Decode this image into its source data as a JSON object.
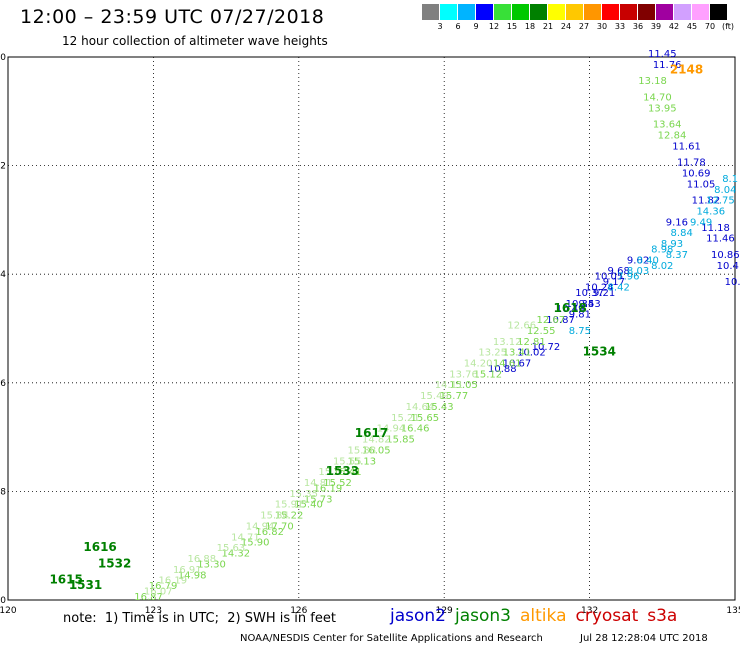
{
  "title": "12:00 – 23:59 UTC 07/27/2018",
  "subtitle": "12 hour collection of altimeter wave heights",
  "scale": {
    "colors": [
      "#808080",
      "#00ffff",
      "#00b4ff",
      "#0000ff",
      "#38e038",
      "#00c800",
      "#008000",
      "#ffff00",
      "#ffc800",
      "#ff9600",
      "#ff0000",
      "#c80000",
      "#800000",
      "#a000a0",
      "#d2a0ff",
      "#ffa0ff",
      "#000000"
    ],
    "labels": [
      "3",
      "6",
      "9",
      "12",
      "15",
      "18",
      "21",
      "24",
      "27",
      "30",
      "33",
      "36",
      "39",
      "42",
      "45",
      "70",
      "(ft)"
    ]
  },
  "axes": {
    "x_labels": [
      "120",
      "123",
      "126",
      "129",
      "132",
      "135"
    ],
    "y_labels": [
      "-50",
      "-52",
      "-54",
      "-56",
      "-58",
      "-60"
    ]
  },
  "note": "note:  1) Time is in UTC;  2) SWH is in feet",
  "legend": [
    {
      "name": "jason2",
      "color": "#0000cc"
    },
    {
      "name": "jason3",
      "color": "#008000"
    },
    {
      "name": "altika",
      "color": "#ff9900"
    },
    {
      "name": "cryosat",
      "color": "#cc0000"
    },
    {
      "name": "s3a",
      "color": "#cc0000"
    }
  ],
  "credit": "NOAA/NESDIS Center for Satellite Applications and Research",
  "credit_time": "Jul 28 12:28:04 UTC 2018",
  "chart_data": {
    "type": "scatter",
    "xlim": [
      120,
      135
    ],
    "ylim": [
      -60,
      -50
    ],
    "grid": true,
    "time_labels": [
      {
        "lon": 134.0,
        "lat": -50.3,
        "text": "2148",
        "color": "#ff9900"
      },
      {
        "lon": 131.6,
        "lat": -54.7,
        "text": "1618",
        "color": "#008000"
      },
      {
        "lon": 132.2,
        "lat": -55.5,
        "text": "1534",
        "color": "#008000"
      },
      {
        "lon": 127.5,
        "lat": -57.0,
        "text": "1617",
        "color": "#008000"
      },
      {
        "lon": 126.9,
        "lat": -57.7,
        "text": "1533",
        "color": "#008000"
      },
      {
        "lon": 121.9,
        "lat": -59.1,
        "text": "1616",
        "color": "#008000"
      },
      {
        "lon": 122.2,
        "lat": -59.4,
        "text": "1532",
        "color": "#008000"
      },
      {
        "lon": 121.2,
        "lat": -59.7,
        "text": "1615",
        "color": "#008000"
      },
      {
        "lon": 121.6,
        "lat": -59.8,
        "text": "1531",
        "color": "#008000"
      }
    ],
    "tracks": [
      {
        "satellite": "jason2",
        "color": "#0000cc",
        "points": [
          {
            "lon": 133.5,
            "lat": -50.0,
            "v": "11.45"
          },
          {
            "lon": 133.6,
            "lat": -50.2,
            "v": "11.76"
          },
          {
            "lon": 134.0,
            "lat": -51.7,
            "v": "11.61"
          },
          {
            "lon": 134.1,
            "lat": -52.0,
            "v": "11.78"
          },
          {
            "lon": 134.2,
            "lat": -52.2,
            "v": "10.69"
          },
          {
            "lon": 134.3,
            "lat": -52.4,
            "v": "11.05"
          },
          {
            "lon": 134.4,
            "lat": -52.7,
            "v": "11.82"
          },
          {
            "lon": 134.6,
            "lat": -53.2,
            "v": "11.18"
          },
          {
            "lon": 134.7,
            "lat": -53.4,
            "v": "11.46"
          },
          {
            "lon": 134.8,
            "lat": -53.7,
            "v": "10.86"
          },
          {
            "lon": 134.85,
            "lat": -53.9,
            "v": "10.4"
          },
          {
            "lon": 134.95,
            "lat": -54.2,
            "v": "10."
          },
          {
            "lon": 133.0,
            "lat": -53.8,
            "v": "9.02"
          },
          {
            "lon": 132.6,
            "lat": -54.0,
            "v": "9.68"
          },
          {
            "lon": 132.4,
            "lat": -54.1,
            "v": "10.05"
          },
          {
            "lon": 132.2,
            "lat": -54.3,
            "v": "10.24"
          },
          {
            "lon": 132.0,
            "lat": -54.4,
            "v": "10.37"
          },
          {
            "lon": 131.8,
            "lat": -54.6,
            "v": "10.34"
          },
          {
            "lon": 131.6,
            "lat": -54.7,
            "v": "10.49"
          },
          {
            "lon": 131.4,
            "lat": -54.9,
            "v": "10.87"
          },
          {
            "lon": 131.1,
            "lat": -55.4,
            "v": "10.72"
          },
          {
            "lon": 130.8,
            "lat": -55.5,
            "v": "10.02"
          },
          {
            "lon": 130.5,
            "lat": -55.7,
            "v": "10.67"
          },
          {
            "lon": 130.2,
            "lat": -55.8,
            "v": "10.88"
          },
          {
            "lon": 132.3,
            "lat": -54.4,
            "v": "9.21"
          },
          {
            "lon": 132.0,
            "lat": -54.6,
            "v": "9.53"
          },
          {
            "lon": 131.8,
            "lat": -54.8,
            "v": "9.81"
          },
          {
            "lon": 132.5,
            "lat": -54.2,
            "v": "9.17"
          },
          {
            "lon": 133.8,
            "lat": -53.1,
            "v": "9.16"
          }
        ]
      },
      {
        "satellite": "jason2-light",
        "color": "#00aadd",
        "points": [
          {
            "lon": 134.9,
            "lat": -52.3,
            "v": "8.1"
          },
          {
            "lon": 134.8,
            "lat": -52.5,
            "v": "8.04"
          },
          {
            "lon": 134.7,
            "lat": -52.7,
            "v": "12.75"
          },
          {
            "lon": 134.5,
            "lat": -52.9,
            "v": "14.36"
          },
          {
            "lon": 134.3,
            "lat": -53.1,
            "v": "9.49"
          },
          {
            "lon": 133.9,
            "lat": -53.3,
            "v": "8.84"
          },
          {
            "lon": 133.7,
            "lat": -53.5,
            "v": "8.93"
          },
          {
            "lon": 133.5,
            "lat": -53.6,
            "v": "8.98"
          },
          {
            "lon": 133.8,
            "lat": -53.7,
            "v": "8.37"
          },
          {
            "lon": 133.2,
            "lat": -53.8,
            "v": "8.40"
          },
          {
            "lon": 133.5,
            "lat": -53.9,
            "v": "8.02"
          },
          {
            "lon": 133.0,
            "lat": -54.0,
            "v": "8.03"
          },
          {
            "lon": 132.8,
            "lat": -54.1,
            "v": "7.96"
          },
          {
            "lon": 132.6,
            "lat": -54.3,
            "v": "8.42"
          },
          {
            "lon": 131.8,
            "lat": -55.1,
            "v": "8.75"
          }
        ]
      },
      {
        "satellite": "jason3",
        "color": "#7ad64e",
        "points": [
          {
            "lon": 133.3,
            "lat": -50.5,
            "v": "13.18"
          },
          {
            "lon": 133.4,
            "lat": -50.8,
            "v": "14.70"
          },
          {
            "lon": 133.5,
            "lat": -51.0,
            "v": "13.95"
          },
          {
            "lon": 133.6,
            "lat": -51.3,
            "v": "13.64"
          },
          {
            "lon": 133.7,
            "lat": -51.5,
            "v": "12.84"
          },
          {
            "lon": 131.2,
            "lat": -54.9,
            "v": "12.67"
          },
          {
            "lon": 131.0,
            "lat": -55.1,
            "v": "12.55"
          },
          {
            "lon": 130.8,
            "lat": -55.3,
            "v": "12.81"
          },
          {
            "lon": 130.5,
            "lat": -55.5,
            "v": "13.41"
          },
          {
            "lon": 130.3,
            "lat": -55.7,
            "v": "14.61"
          },
          {
            "lon": 129.9,
            "lat": -55.9,
            "v": "15.12"
          },
          {
            "lon": 129.4,
            "lat": -56.1,
            "v": "15.05"
          },
          {
            "lon": 129.2,
            "lat": -56.3,
            "v": "15.77"
          },
          {
            "lon": 128.9,
            "lat": -56.5,
            "v": "15.43"
          },
          {
            "lon": 128.6,
            "lat": -56.7,
            "v": "15.65"
          },
          {
            "lon": 128.4,
            "lat": -56.9,
            "v": "16.46"
          },
          {
            "lon": 128.1,
            "lat": -57.1,
            "v": "15.85"
          },
          {
            "lon": 127.6,
            "lat": -57.3,
            "v": "16.05"
          },
          {
            "lon": 127.3,
            "lat": -57.5,
            "v": "15.13"
          },
          {
            "lon": 127.0,
            "lat": -57.7,
            "v": "15.41"
          },
          {
            "lon": 126.8,
            "lat": -57.9,
            "v": "15.52"
          },
          {
            "lon": 126.6,
            "lat": -58.0,
            "v": "16.19"
          },
          {
            "lon": 126.4,
            "lat": -58.2,
            "v": "15.73"
          },
          {
            "lon": 126.2,
            "lat": -58.3,
            "v": "15.40"
          },
          {
            "lon": 125.8,
            "lat": -58.5,
            "v": "15.22"
          },
          {
            "lon": 125.6,
            "lat": -58.7,
            "v": "17.70"
          },
          {
            "lon": 125.4,
            "lat": -58.8,
            "v": "16.82"
          },
          {
            "lon": 125.1,
            "lat": -59.0,
            "v": "15.90"
          },
          {
            "lon": 124.7,
            "lat": -59.2,
            "v": "14.32"
          },
          {
            "lon": 124.2,
            "lat": -59.4,
            "v": "13.30"
          },
          {
            "lon": 123.8,
            "lat": -59.6,
            "v": "14.98"
          },
          {
            "lon": 123.2,
            "lat": -59.8,
            "v": "16.79"
          },
          {
            "lon": 122.9,
            "lat": -60.0,
            "v": "16.87"
          },
          {
            "lon": 122.6,
            "lat": -60.2,
            "v": "17.20"
          },
          {
            "lon": 122.2,
            "lat": -60.4,
            "v": "16.67"
          },
          {
            "lon": 121.8,
            "lat": -60.6,
            "v": "18.24"
          },
          {
            "lon": 121.6,
            "lat": -60.8,
            "v": "17.40"
          },
          {
            "lon": 121.2,
            "lat": -61.0,
            "v": "16.80"
          }
        ]
      },
      {
        "satellite": "jason3-pale",
        "color": "#b8e6a0",
        "points": [
          {
            "lon": 130.6,
            "lat": -55.0,
            "v": "12.66"
          },
          {
            "lon": 130.3,
            "lat": -55.3,
            "v": "13.12"
          },
          {
            "lon": 130.0,
            "lat": -55.5,
            "v": "13.25"
          },
          {
            "lon": 129.7,
            "lat": -55.7,
            "v": "14.20"
          },
          {
            "lon": 129.4,
            "lat": -55.9,
            "v": "13.76"
          },
          {
            "lon": 129.1,
            "lat": -56.1,
            "v": "14.11"
          },
          {
            "lon": 128.8,
            "lat": -56.3,
            "v": "15.49"
          },
          {
            "lon": 128.5,
            "lat": -56.5,
            "v": "14.64"
          },
          {
            "lon": 128.2,
            "lat": -56.7,
            "v": "15.21"
          },
          {
            "lon": 127.9,
            "lat": -56.9,
            "v": "14.94"
          },
          {
            "lon": 127.6,
            "lat": -57.1,
            "v": "14.82"
          },
          {
            "lon": 127.3,
            "lat": -57.3,
            "v": "15.88"
          },
          {
            "lon": 127.0,
            "lat": -57.5,
            "v": "15.55"
          },
          {
            "lon": 126.7,
            "lat": -57.7,
            "v": "15.57"
          },
          {
            "lon": 126.4,
            "lat": -57.9,
            "v": "14.81"
          },
          {
            "lon": 126.1,
            "lat": -58.1,
            "v": "15.35"
          },
          {
            "lon": 125.8,
            "lat": -58.3,
            "v": "15.91"
          },
          {
            "lon": 125.5,
            "lat": -58.5,
            "v": "15.34"
          },
          {
            "lon": 125.2,
            "lat": -58.7,
            "v": "14.94"
          },
          {
            "lon": 124.9,
            "lat": -58.9,
            "v": "14.71"
          },
          {
            "lon": 124.6,
            "lat": -59.1,
            "v": "15.63"
          },
          {
            "lon": 124.0,
            "lat": -59.3,
            "v": "16.88"
          },
          {
            "lon": 123.7,
            "lat": -59.5,
            "v": "16.91"
          },
          {
            "lon": 123.4,
            "lat": -59.7,
            "v": "16.19"
          },
          {
            "lon": 123.1,
            "lat": -59.9,
            "v": "16.07"
          },
          {
            "lon": 122.8,
            "lat": -60.1,
            "v": "16.88"
          }
        ]
      }
    ]
  }
}
